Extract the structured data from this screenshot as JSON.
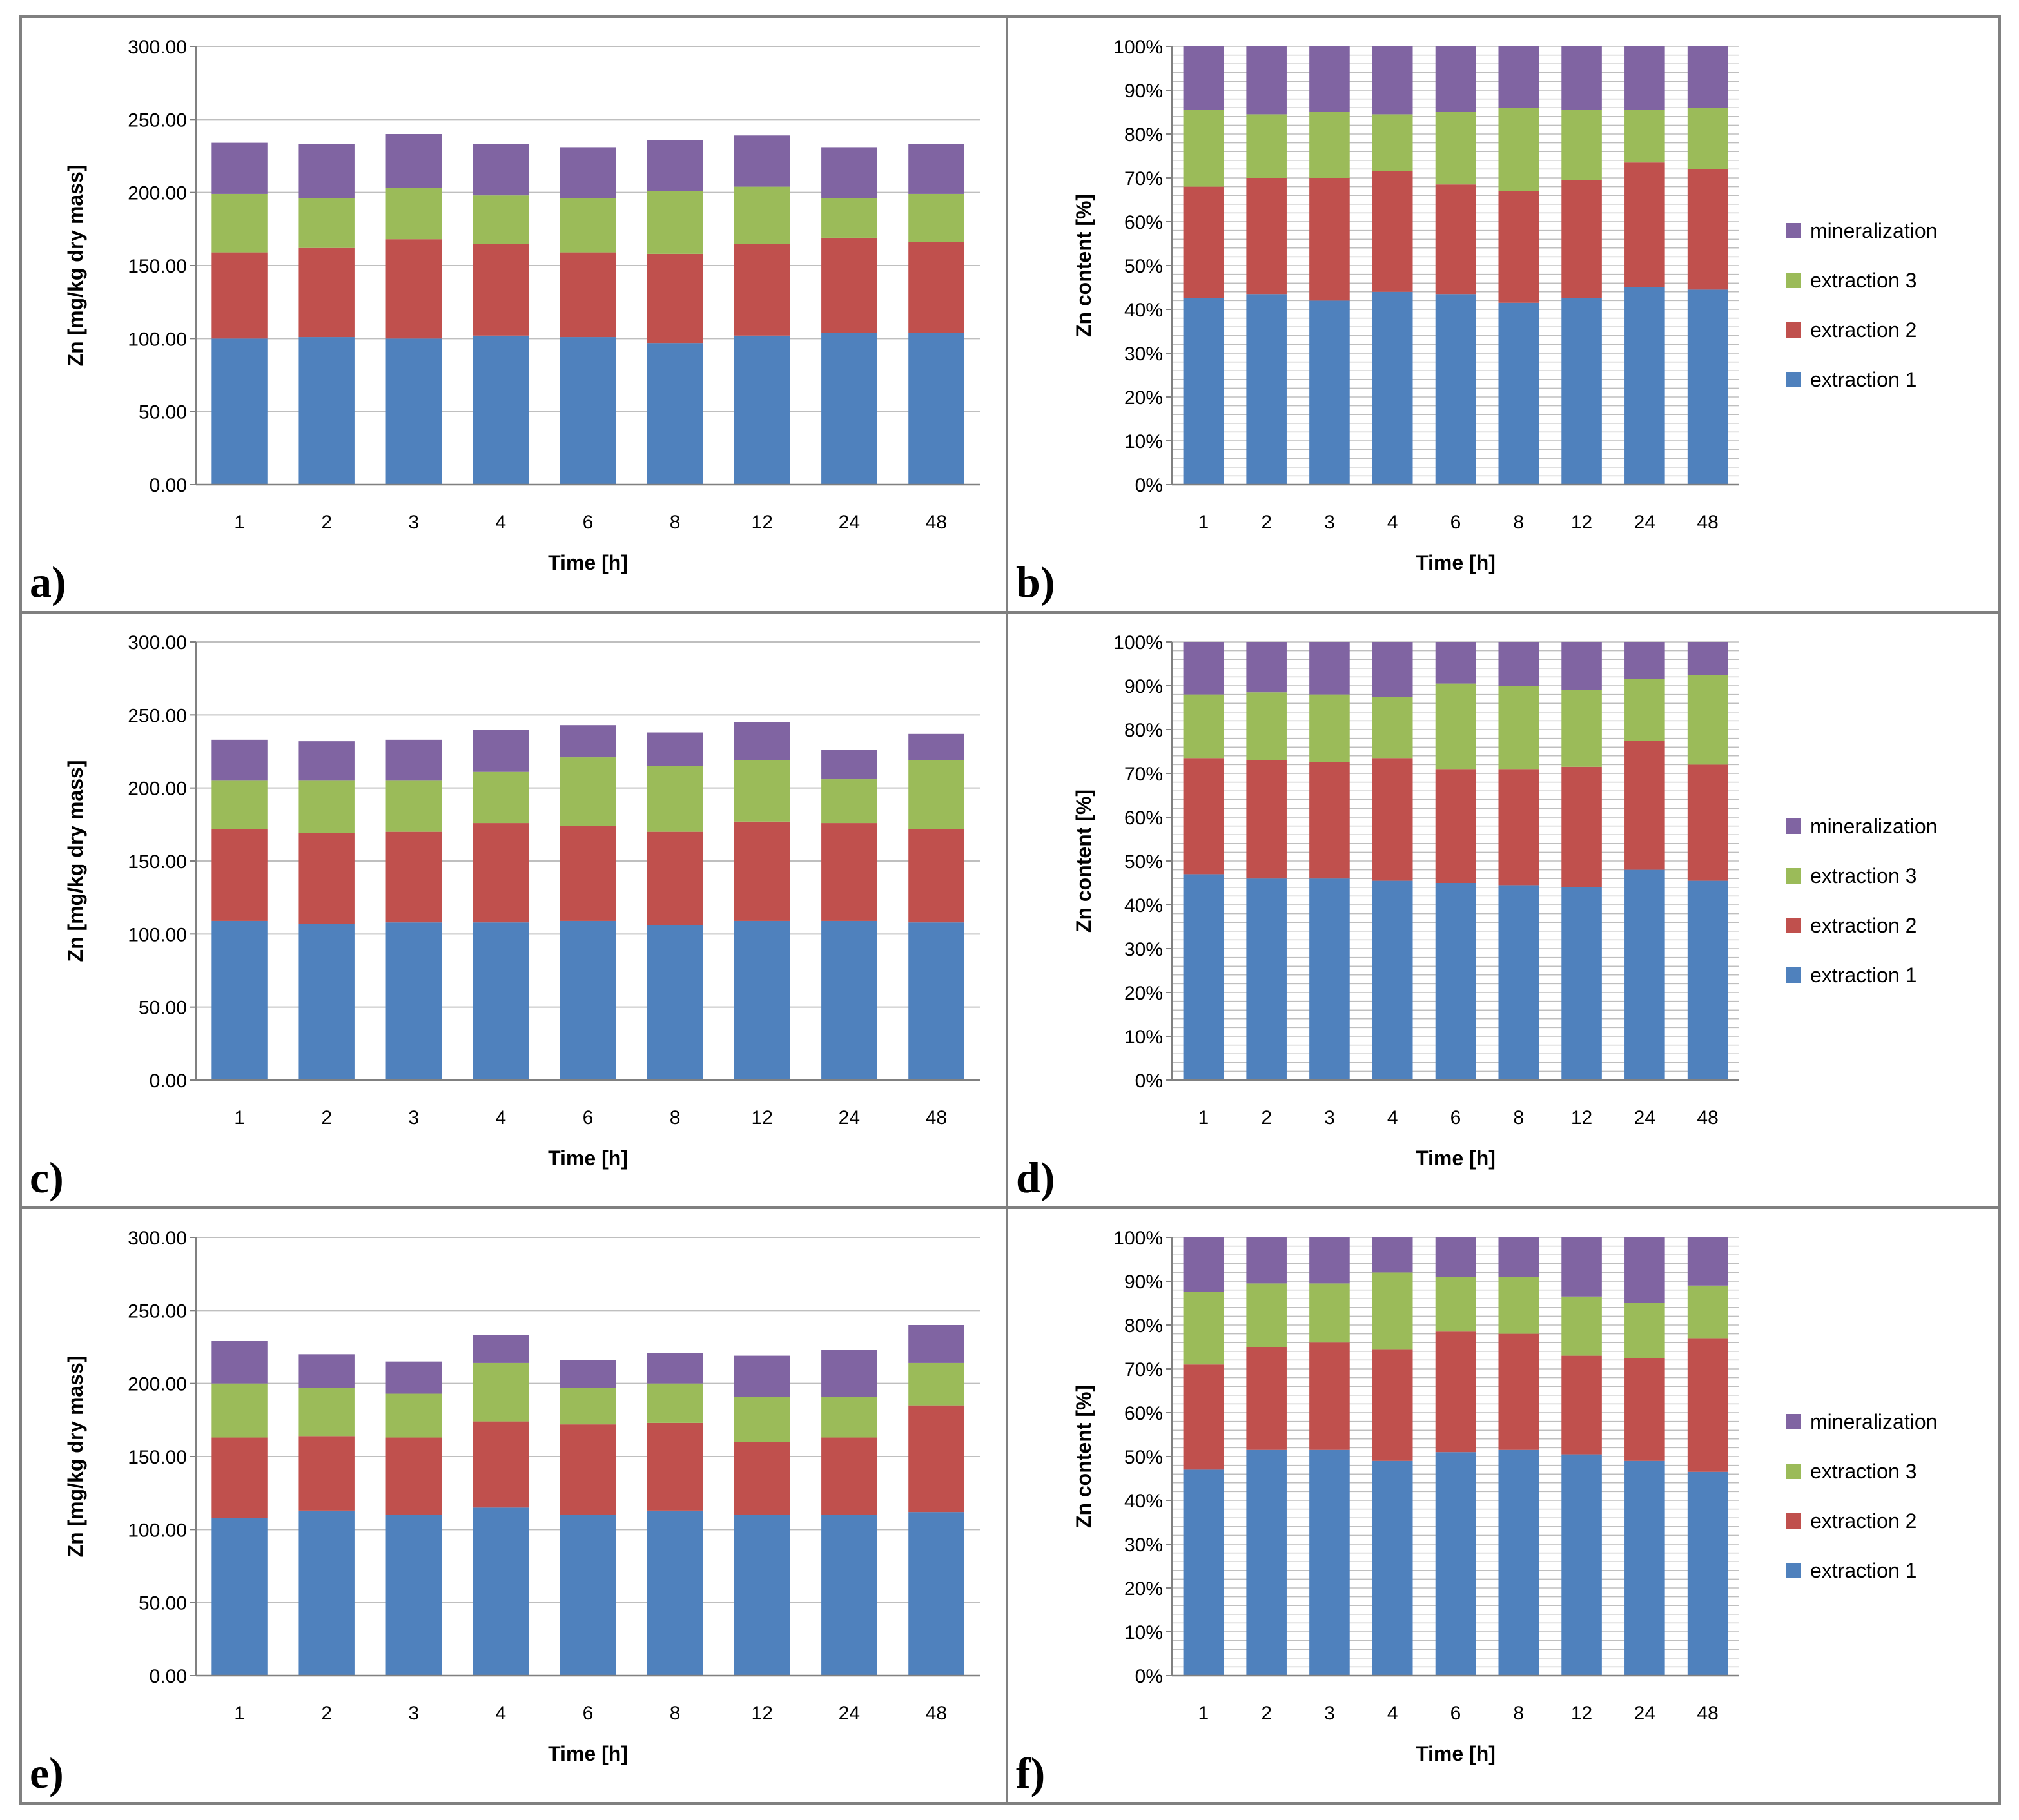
{
  "colors": {
    "extraction 1": "#4f81bd",
    "extraction 2": "#c0504d",
    "extraction 3": "#9bbb59",
    "mineralization": "#8064a2",
    "grid": "#bfbfbf",
    "border": "#808080"
  },
  "chart_data": [
    {
      "panel": "a)",
      "type": "bar",
      "stacked": true,
      "percent": false,
      "xlabel": "Time [h]",
      "ylabel": "Zn [mg/kg dry mass]",
      "ylim": [
        0,
        300
      ],
      "yticks": [
        "0.00",
        "50.00",
        "100.00",
        "150.00",
        "200.00",
        "250.00",
        "300.00"
      ],
      "categories": [
        "1",
        "2",
        "3",
        "4",
        "6",
        "8",
        "12",
        "24",
        "48"
      ],
      "grid": "horizontal",
      "legend": "none",
      "series": [
        {
          "name": "extraction 1",
          "values": [
            100,
            101,
            100,
            102,
            101,
            97,
            102,
            104,
            104
          ]
        },
        {
          "name": "extraction 2",
          "values": [
            59,
            61,
            68,
            63,
            58,
            61,
            63,
            65,
            62
          ]
        },
        {
          "name": "extraction 3",
          "values": [
            40,
            34,
            35,
            33,
            37,
            43,
            39,
            27,
            33
          ]
        },
        {
          "name": "mineralization",
          "values": [
            35,
            37,
            37,
            35,
            35,
            35,
            35,
            35,
            34
          ]
        }
      ]
    },
    {
      "panel": "b)",
      "type": "bar",
      "stacked": true,
      "percent": true,
      "xlabel": "Time [h]",
      "ylabel": "Zn content [%]",
      "ylim": [
        0,
        100
      ],
      "yticks": [
        "0%",
        "10%",
        "20%",
        "30%",
        "40%",
        "50%",
        "60%",
        "70%",
        "80%",
        "90%",
        "100%"
      ],
      "categories": [
        "1",
        "2",
        "3",
        "4",
        "6",
        "8",
        "12",
        "24",
        "48"
      ],
      "grid": "dense horizontal",
      "legend": "right",
      "series": [
        {
          "name": "extraction 1",
          "values": [
            42.5,
            43.5,
            42,
            44,
            43.5,
            41.5,
            42.5,
            45,
            44.5
          ]
        },
        {
          "name": "extraction 2",
          "values": [
            25.5,
            26.5,
            28,
            27.5,
            25,
            25.5,
            27,
            28.5,
            27.5
          ]
        },
        {
          "name": "extraction 3",
          "values": [
            17.5,
            14.5,
            15,
            13,
            16.5,
            19,
            16,
            12,
            14
          ]
        },
        {
          "name": "mineralization",
          "values": [
            14.5,
            15.5,
            15,
            15.5,
            15,
            14,
            14.5,
            14.5,
            14
          ]
        }
      ]
    },
    {
      "panel": "c)",
      "type": "bar",
      "stacked": true,
      "percent": false,
      "xlabel": "Time [h]",
      "ylabel": "Zn [mg/kg dry mass]",
      "ylim": [
        0,
        300
      ],
      "yticks": [
        "0.00",
        "50.00",
        "100.00",
        "150.00",
        "200.00",
        "250.00",
        "300.00"
      ],
      "categories": [
        "1",
        "2",
        "3",
        "4",
        "6",
        "8",
        "12",
        "24",
        "48"
      ],
      "grid": "horizontal",
      "legend": "none",
      "series": [
        {
          "name": "extraction 1",
          "values": [
            109,
            107,
            108,
            108,
            109,
            106,
            109,
            109,
            108
          ]
        },
        {
          "name": "extraction 2",
          "values": [
            63,
            62,
            62,
            68,
            65,
            64,
            68,
            67,
            64
          ]
        },
        {
          "name": "extraction 3",
          "values": [
            33,
            36,
            35,
            35,
            47,
            45,
            42,
            30,
            47
          ]
        },
        {
          "name": "mineralization",
          "values": [
            28,
            27,
            28,
            29,
            22,
            23,
            26,
            20,
            18
          ]
        }
      ]
    },
    {
      "panel": "d)",
      "type": "bar",
      "stacked": true,
      "percent": true,
      "xlabel": "Time [h]",
      "ylabel": "Zn content [%]",
      "ylim": [
        0,
        100
      ],
      "yticks": [
        "0%",
        "10%",
        "20%",
        "30%",
        "40%",
        "50%",
        "60%",
        "70%",
        "80%",
        "90%",
        "100%"
      ],
      "categories": [
        "1",
        "2",
        "3",
        "4",
        "6",
        "8",
        "12",
        "24",
        "48"
      ],
      "grid": "dense horizontal",
      "legend": "right",
      "series": [
        {
          "name": "extraction 1",
          "values": [
            47,
            46,
            46,
            45.5,
            45,
            44.5,
            44,
            48,
            45.5
          ]
        },
        {
          "name": "extraction 2",
          "values": [
            26.5,
            27,
            26.5,
            28,
            26,
            26.5,
            27.5,
            29.5,
            26.5
          ]
        },
        {
          "name": "extraction 3",
          "values": [
            14.5,
            15.5,
            15.5,
            14,
            19.5,
            19,
            17.5,
            14,
            20.5
          ]
        },
        {
          "name": "mineralization",
          "values": [
            12,
            11.5,
            12,
            12.5,
            9.5,
            10,
            11,
            8.5,
            7.5
          ]
        }
      ]
    },
    {
      "panel": "e)",
      "type": "bar",
      "stacked": true,
      "percent": false,
      "xlabel": "Time [h]",
      "ylabel": "Zn [mg/kg dry mass]",
      "ylim": [
        0,
        300
      ],
      "yticks": [
        "0.00",
        "50.00",
        "100.00",
        "150.00",
        "200.00",
        "250.00",
        "300.00"
      ],
      "categories": [
        "1",
        "2",
        "3",
        "4",
        "6",
        "8",
        "12",
        "24",
        "48"
      ],
      "grid": "horizontal",
      "legend": "none",
      "series": [
        {
          "name": "extraction 1",
          "values": [
            108,
            113,
            110,
            115,
            110,
            113,
            110,
            110,
            112
          ]
        },
        {
          "name": "extraction 2",
          "values": [
            55,
            51,
            53,
            59,
            62,
            60,
            50,
            53,
            73
          ]
        },
        {
          "name": "extraction 3",
          "values": [
            37,
            33,
            30,
            40,
            25,
            27,
            31,
            28,
            29
          ]
        },
        {
          "name": "mineralization",
          "values": [
            29,
            23,
            22,
            19,
            19,
            21,
            28,
            32,
            26
          ]
        }
      ]
    },
    {
      "panel": "f)",
      "type": "bar",
      "stacked": true,
      "percent": true,
      "xlabel": "Time [h]",
      "ylabel": "Zn content [%]",
      "ylim": [
        0,
        100
      ],
      "yticks": [
        "0%",
        "10%",
        "20%",
        "30%",
        "40%",
        "50%",
        "60%",
        "70%",
        "80%",
        "90%",
        "100%"
      ],
      "categories": [
        "1",
        "2",
        "3",
        "4",
        "6",
        "8",
        "12",
        "24",
        "48"
      ],
      "grid": "dense horizontal",
      "legend": "right",
      "series": [
        {
          "name": "extraction 1",
          "values": [
            47,
            51.5,
            51.5,
            49,
            51,
            51.5,
            50.5,
            49,
            46.5
          ]
        },
        {
          "name": "extraction 2",
          "values": [
            24,
            23.5,
            24.5,
            25.5,
            27.5,
            26.5,
            22.5,
            23.5,
            30.5
          ]
        },
        {
          "name": "extraction 3",
          "values": [
            16.5,
            14.5,
            13.5,
            17.5,
            12.5,
            13,
            13.5,
            12.5,
            12
          ]
        },
        {
          "name": "mineralization",
          "values": [
            12.5,
            10.5,
            10.5,
            8,
            9,
            9,
            13.5,
            15,
            11
          ]
        }
      ]
    }
  ],
  "legend_items": [
    "mineralization",
    "extraction 3",
    "extraction 2",
    "extraction 1"
  ]
}
